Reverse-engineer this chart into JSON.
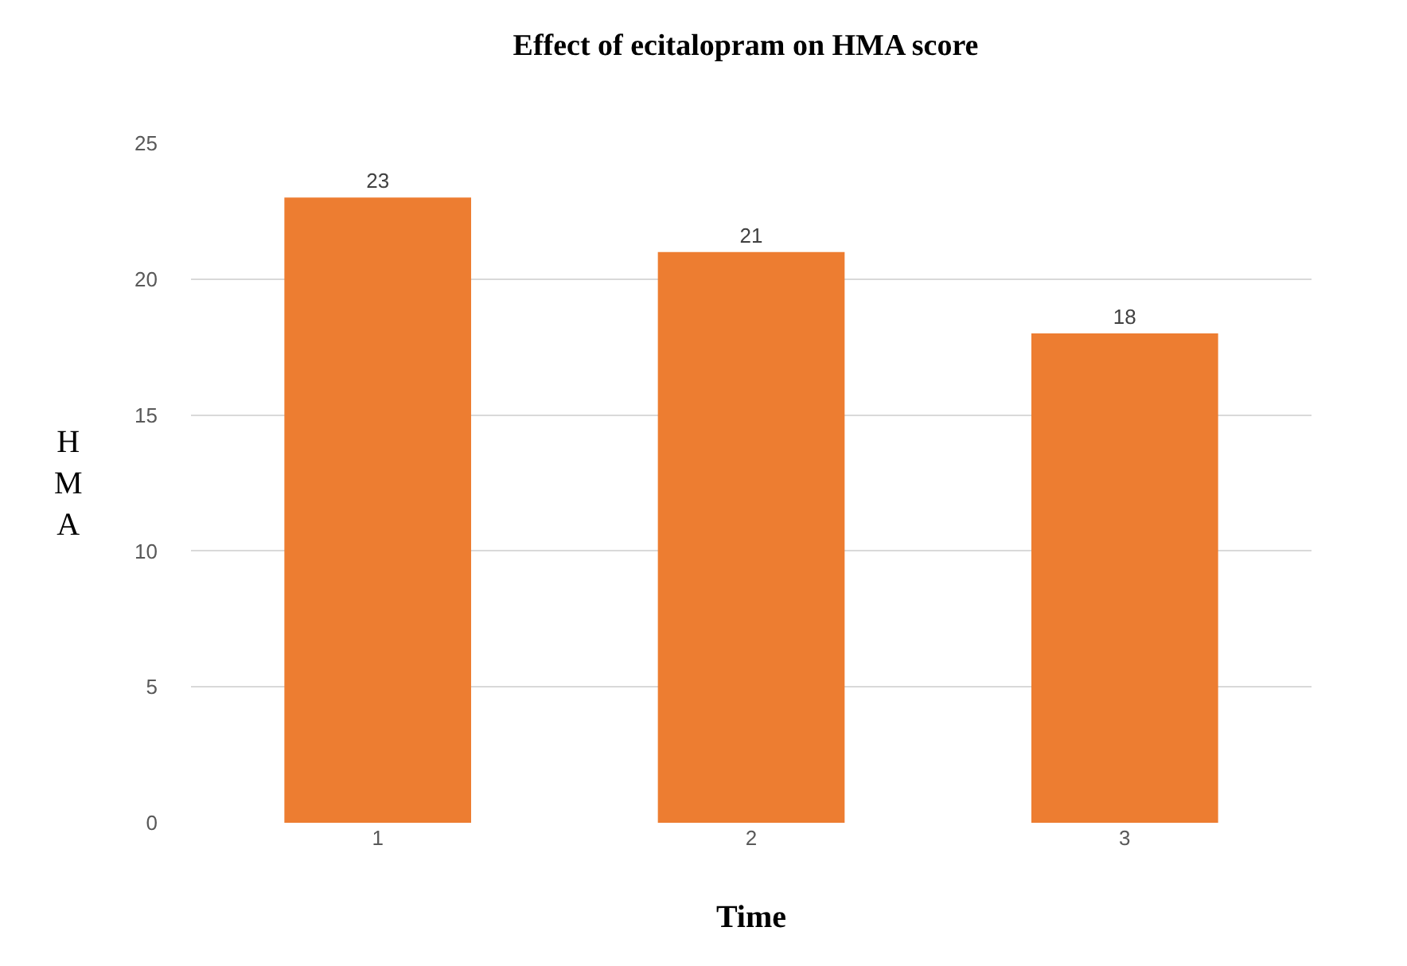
{
  "chart_data": {
    "type": "bar",
    "title": "Effect of ecitalopram on HMA score",
    "xlabel": "Time",
    "ylabel": "HMA",
    "categories": [
      "1",
      "2",
      "3"
    ],
    "values": [
      23,
      21,
      18
    ],
    "color": "#ed7d31",
    "ylim": [
      0,
      25
    ],
    "yticks": [
      0,
      5,
      10,
      15,
      20,
      25
    ],
    "grid": "y",
    "data_labels": true
  }
}
